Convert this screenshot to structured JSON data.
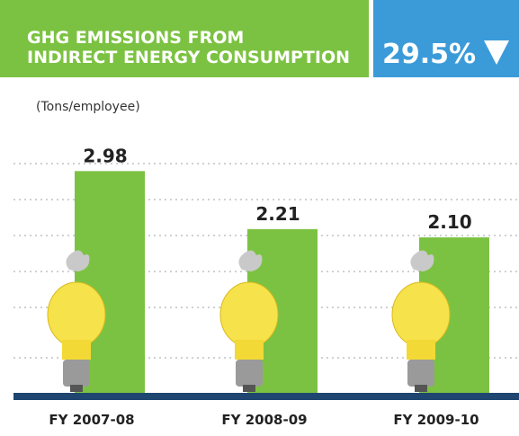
{
  "chart_data": {
    "type": "bar",
    "title_lines": [
      "GHG EMISSIONS FROM",
      "INDIRECT ENERGY CONSUMPTION"
    ],
    "badge": "29.5%",
    "y_label": "(Tons/employee)",
    "categories": [
      "FY 2007-08",
      "FY 2008-09",
      "FY 2009-10"
    ],
    "values": [
      2.98,
      2.21,
      2.1
    ],
    "value_labels": [
      "2.98",
      "2.21",
      "2.10"
    ],
    "color": "#7cc242",
    "ylim": [
      0,
      3.7
    ]
  }
}
